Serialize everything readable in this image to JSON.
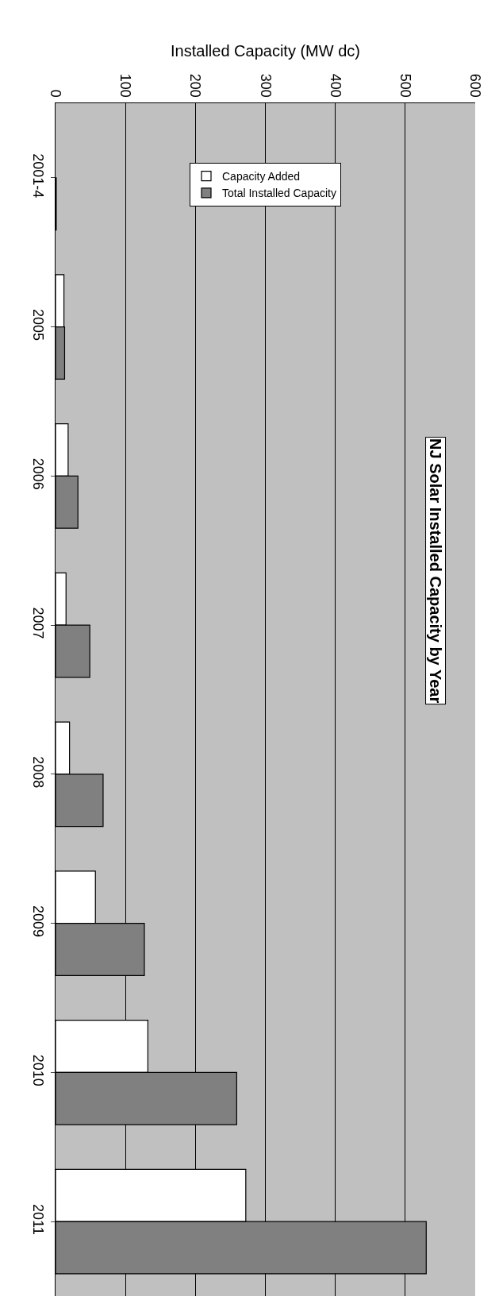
{
  "chart_data": {
    "type": "bar",
    "orientation": "horizontal",
    "title": "NJ Solar Installed Capacity by Year",
    "xlabel": "Installed Capacity (MW dc)",
    "categories": [
      "2001-4",
      "2005",
      "2006",
      "2007",
      "2008",
      "2009",
      "2010",
      "2011"
    ],
    "series": [
      {
        "name": "Capacity Added",
        "color": "#ffffff",
        "values": [
          null,
          12,
          18,
          15,
          20,
          57,
          132,
          272
        ]
      },
      {
        "name": "Total Installed Capacity",
        "color": "#808080",
        "values": [
          1,
          13,
          32,
          49,
          68,
          127,
          259,
          530
        ]
      }
    ],
    "xlim": [
      0,
      600
    ],
    "xticks": [
      0,
      100,
      200,
      300,
      400,
      500,
      600
    ],
    "grid": "x",
    "legend": "top"
  }
}
